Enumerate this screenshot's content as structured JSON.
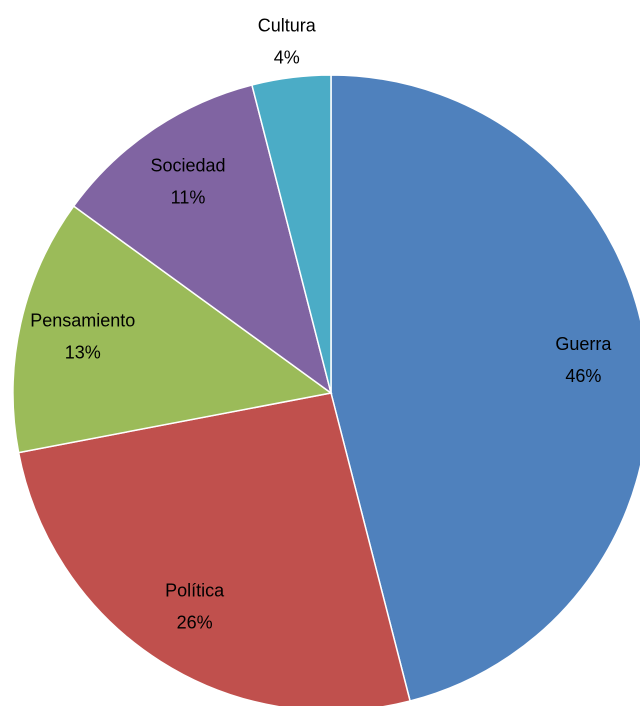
{
  "chart_data": {
    "type": "pie",
    "categories": [
      "Guerra",
      "Política",
      "Pensamiento",
      "Sociedad",
      "Cultura"
    ],
    "values": [
      46,
      26,
      13,
      11,
      4
    ],
    "value_labels": [
      "46%",
      "26%",
      "13%",
      "11%",
      "4%"
    ],
    "colors": [
      "#4f81bd",
      "#c0504d",
      "#9bbb59",
      "#8064a2",
      "#4bacc6"
    ]
  }
}
